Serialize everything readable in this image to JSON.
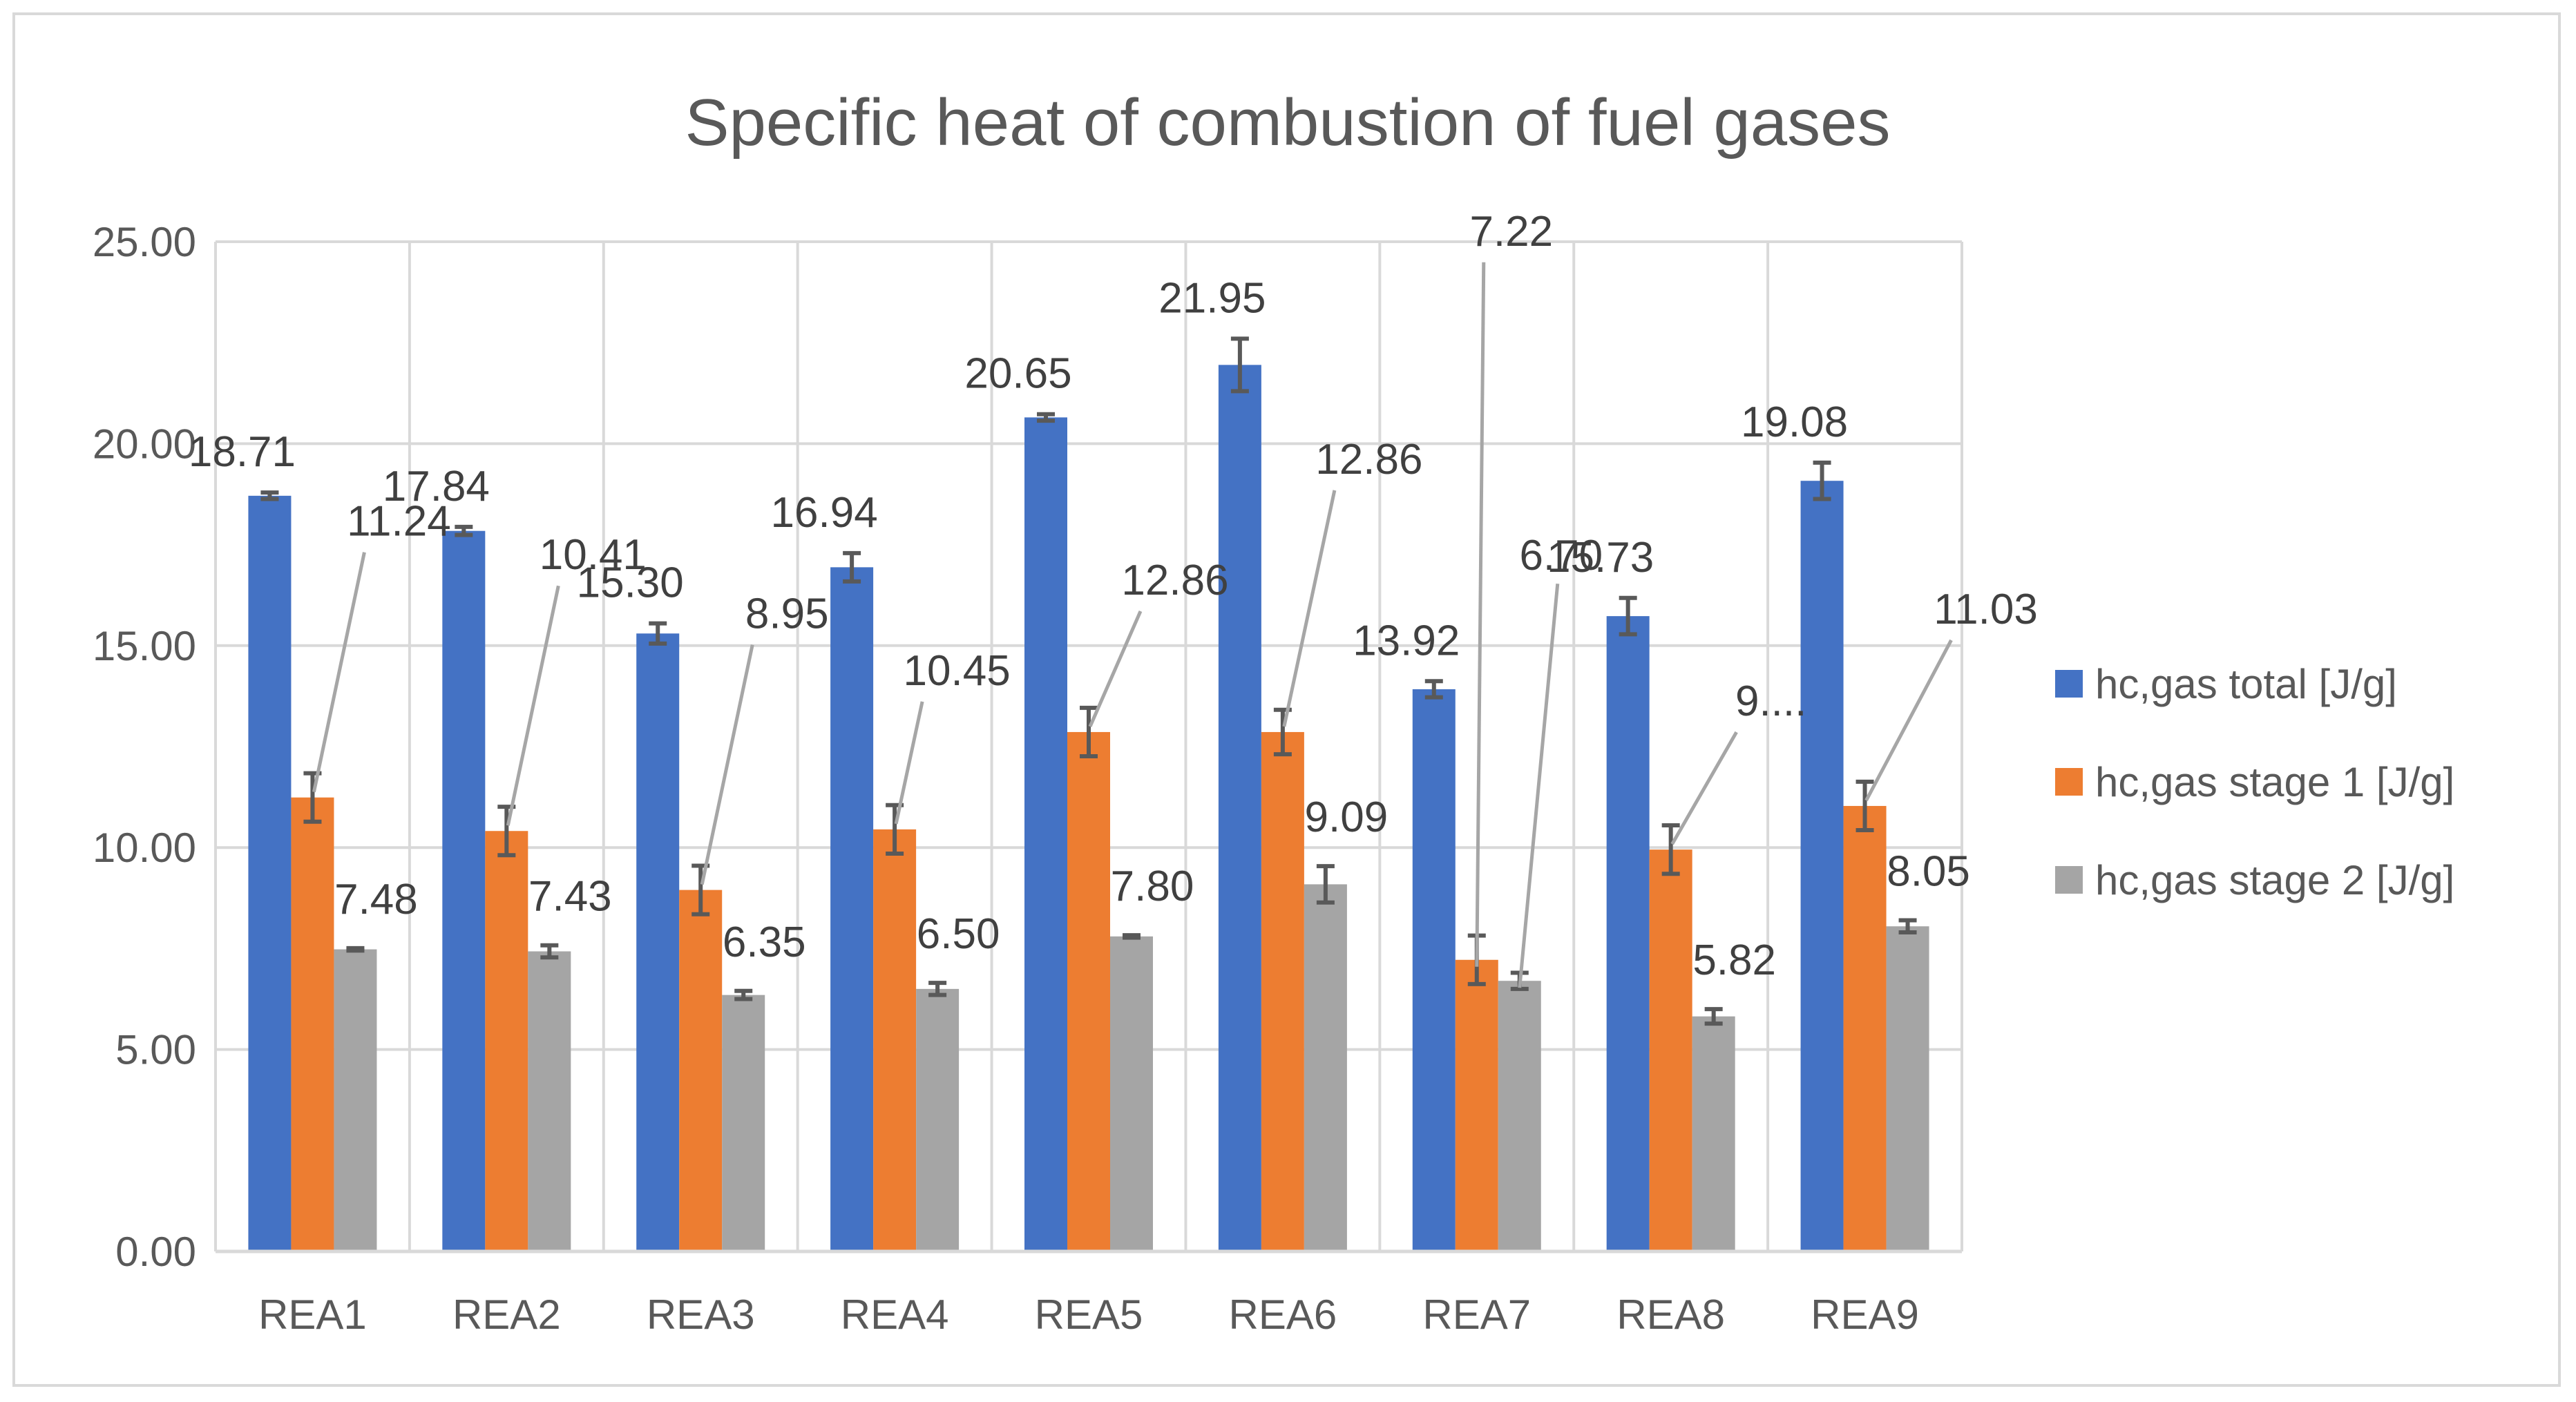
{
  "chart_data": {
    "type": "bar",
    "title": "Specific heat of combustion of fuel gases",
    "xlabel": "",
    "ylabel": "",
    "ylim": [
      0,
      25
    ],
    "yticks": [
      0,
      5,
      10,
      15,
      20,
      25
    ],
    "ytick_labels": [
      "0.00",
      "5.00",
      "10.00",
      "15.00",
      "20.00",
      "25.00"
    ],
    "grid": true,
    "legend_position": "right",
    "categories": [
      "REA1",
      "REA2",
      "REA3",
      "REA4",
      "REA5",
      "REA6",
      "REA7",
      "REA8",
      "REA9"
    ],
    "series": [
      {
        "name": "hc,gas  total [J/g]",
        "color": "#4472c4",
        "values": [
          18.71,
          17.84,
          15.3,
          16.94,
          20.65,
          21.95,
          13.92,
          15.73,
          19.08
        ],
        "errors": [
          0.08,
          0.1,
          0.25,
          0.35,
          0.08,
          0.65,
          0.2,
          0.45,
          0.45
        ],
        "labels": [
          "18.71",
          "17.84",
          "15.30",
          "16.94",
          "20.65",
          "21.95",
          "13.92",
          "15.73",
          "19.08"
        ]
      },
      {
        "name": "hc,gas  stage 1 [J/g]",
        "color": "#ed7d31",
        "values": [
          11.24,
          10.41,
          8.95,
          10.45,
          12.86,
          12.86,
          7.22,
          9.95,
          11.03
        ],
        "errors": [
          0.6,
          0.6,
          0.6,
          0.6,
          0.6,
          0.55,
          0.6,
          0.6,
          0.6
        ],
        "labels": [
          "11.24",
          "10.41",
          "8.95",
          "10.45",
          "12.86",
          "12.86",
          "7.22",
          "9....",
          "11.03"
        ]
      },
      {
        "name": "hc,gas  stage 2 [J/g]",
        "color": "#a5a5a5",
        "values": [
          7.48,
          7.43,
          6.35,
          6.5,
          7.8,
          9.09,
          6.7,
          5.82,
          8.05
        ],
        "errors": [
          0.03,
          0.15,
          0.1,
          0.15,
          0.03,
          0.45,
          0.2,
          0.18,
          0.15
        ],
        "labels": [
          "7.48",
          "7.43",
          "6.35",
          "6.50",
          "7.80",
          "9.09",
          "6.70",
          "5.82",
          "8.05"
        ]
      }
    ]
  }
}
